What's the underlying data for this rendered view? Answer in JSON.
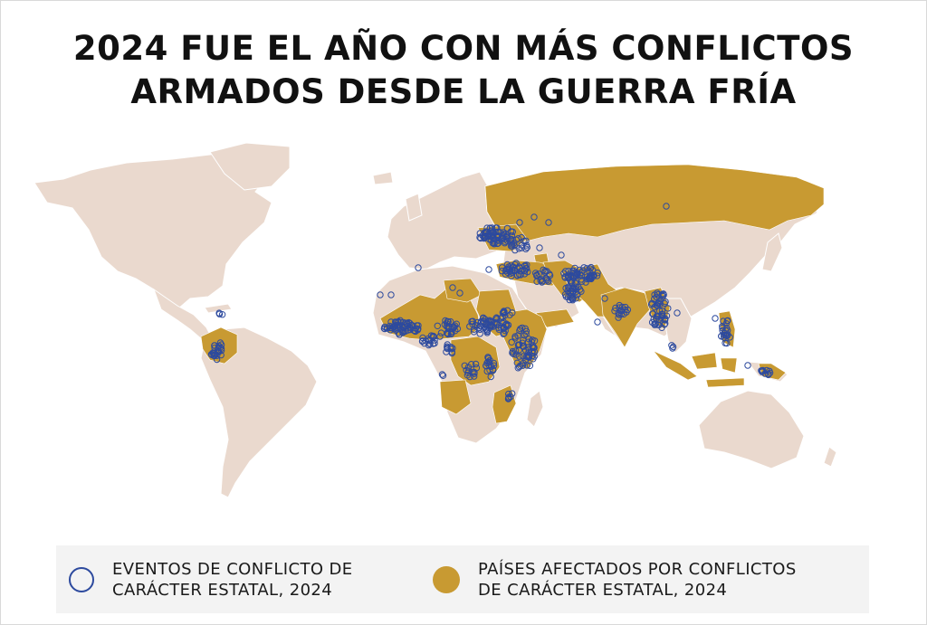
{
  "title": {
    "line1": "2024 FUE EL AÑO CON MÁS CONFLICTOS",
    "line2": "ARMADOS DESDE LA GUERRA FRÍA"
  },
  "legend": {
    "events": {
      "line1": "EVENTOS DE CONFLICTO DE",
      "line2": "CARÁCTER ESTATAL, 2024"
    },
    "countries": {
      "line1": "PAÍSES AFECTADOS POR CONFLICTOS",
      "line2": "DE CARÁCTER ESTATAL, 2024"
    }
  },
  "colors": {
    "land": "#ead9ce",
    "affected": "#c89a32",
    "event": "#2d4a9e",
    "background": "#ffffff"
  },
  "affected_countries": [
    "Russia",
    "Ukraine",
    "Syria",
    "Iraq",
    "Yemen",
    "Israel",
    "Lebanon",
    "Iran",
    "Afghanistan",
    "Pakistan",
    "India",
    "Myanmar",
    "Philippines",
    "Indonesia",
    "Papua New Guinea",
    "Mali",
    "Burkina Faso",
    "Niger",
    "Nigeria",
    "Cameroon",
    "Chad",
    "Libya",
    "Sudan",
    "South Sudan",
    "Ethiopia",
    "Eritrea",
    "Somalia",
    "Kenya",
    "Democratic Republic of the Congo",
    "Central African Republic",
    "Burundi",
    "Angola",
    "Mozambique",
    "Colombia",
    "Azerbaijan",
    "Armenia"
  ],
  "event_clusters": [
    "Ukraine",
    "Russia border",
    "Syria",
    "Iraq",
    "Turkey",
    "Iran",
    "Afghanistan",
    "Pakistan",
    "India",
    "Myanmar",
    "Philippines",
    "Indonesia",
    "Papua New Guinea",
    "Mali",
    "Burkina Faso",
    "Niger",
    "Nigeria",
    "Cameroon",
    "Sudan",
    "South Sudan",
    "Ethiopia",
    "Somalia",
    "Kenya",
    "Mozambique",
    "Democratic Republic of the Congo",
    "Colombia",
    "Haiti"
  ]
}
